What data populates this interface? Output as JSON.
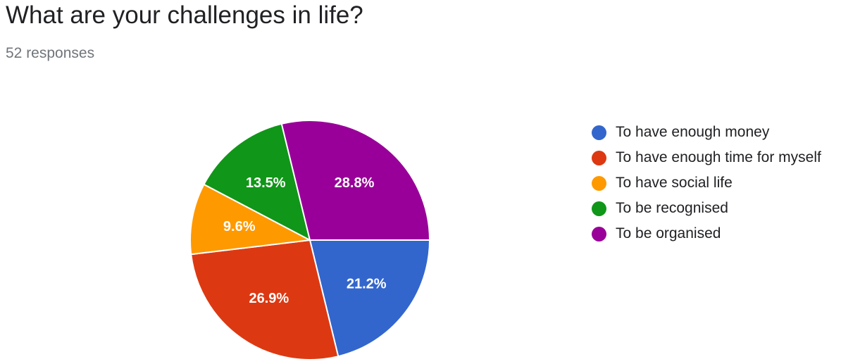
{
  "question": {
    "title": "What are your challenges in life?",
    "responses": "52 responses"
  },
  "chart_data": {
    "type": "pie",
    "title": "What are your challenges in life?",
    "legend_position": "right",
    "start_angle_deg": 0,
    "direction": "clockwise",
    "slices": [
      {
        "label": "To have enough money",
        "value": 21.2,
        "display": "21.2%",
        "color": "#3366cc"
      },
      {
        "label": "To have enough time for myself",
        "value": 26.9,
        "display": "26.9%",
        "color": "#dc3912"
      },
      {
        "label": "To have social life",
        "value": 9.6,
        "display": "9.6%",
        "color": "#ff9900"
      },
      {
        "label": "To be recognised",
        "value": 13.5,
        "display": "13.5%",
        "color": "#109618"
      },
      {
        "label": "To be organised",
        "value": 28.8,
        "display": "28.8%",
        "color": "#990099"
      }
    ]
  }
}
